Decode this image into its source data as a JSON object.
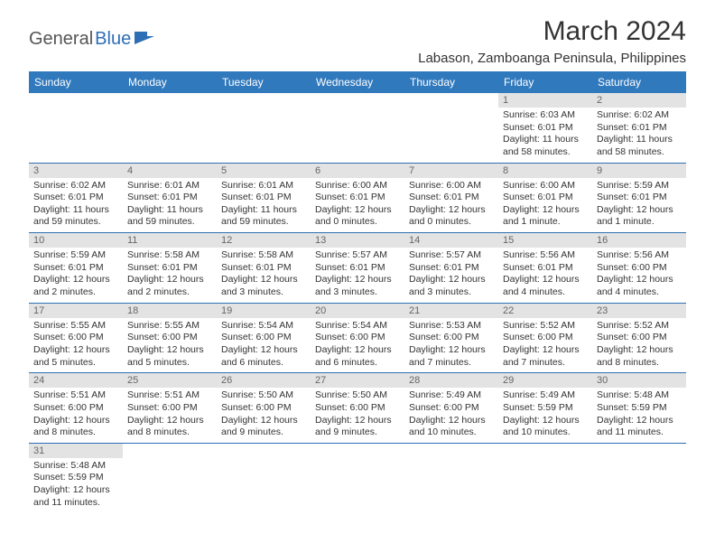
{
  "logo": {
    "general": "General",
    "blue": "Blue"
  },
  "title": "March 2024",
  "location": "Labason, Zamboanga Peninsula, Philippines",
  "colors": {
    "header_bg": "#3179bd",
    "header_text": "#ffffff",
    "daynum_bg": "#e3e3e3",
    "daynum_text": "#666666",
    "border": "#2d6fb5",
    "logo_blue": "#2d6fb5"
  },
  "weekdays": [
    "Sunday",
    "Monday",
    "Tuesday",
    "Wednesday",
    "Thursday",
    "Friday",
    "Saturday"
  ],
  "weeks": [
    [
      null,
      null,
      null,
      null,
      null,
      {
        "n": "1",
        "sr": "Sunrise: 6:03 AM",
        "ss": "Sunset: 6:01 PM",
        "dl": "Daylight: 11 hours and 58 minutes."
      },
      {
        "n": "2",
        "sr": "Sunrise: 6:02 AM",
        "ss": "Sunset: 6:01 PM",
        "dl": "Daylight: 11 hours and 58 minutes."
      }
    ],
    [
      {
        "n": "3",
        "sr": "Sunrise: 6:02 AM",
        "ss": "Sunset: 6:01 PM",
        "dl": "Daylight: 11 hours and 59 minutes."
      },
      {
        "n": "4",
        "sr": "Sunrise: 6:01 AM",
        "ss": "Sunset: 6:01 PM",
        "dl": "Daylight: 11 hours and 59 minutes."
      },
      {
        "n": "5",
        "sr": "Sunrise: 6:01 AM",
        "ss": "Sunset: 6:01 PM",
        "dl": "Daylight: 11 hours and 59 minutes."
      },
      {
        "n": "6",
        "sr": "Sunrise: 6:00 AM",
        "ss": "Sunset: 6:01 PM",
        "dl": "Daylight: 12 hours and 0 minutes."
      },
      {
        "n": "7",
        "sr": "Sunrise: 6:00 AM",
        "ss": "Sunset: 6:01 PM",
        "dl": "Daylight: 12 hours and 0 minutes."
      },
      {
        "n": "8",
        "sr": "Sunrise: 6:00 AM",
        "ss": "Sunset: 6:01 PM",
        "dl": "Daylight: 12 hours and 1 minute."
      },
      {
        "n": "9",
        "sr": "Sunrise: 5:59 AM",
        "ss": "Sunset: 6:01 PM",
        "dl": "Daylight: 12 hours and 1 minute."
      }
    ],
    [
      {
        "n": "10",
        "sr": "Sunrise: 5:59 AM",
        "ss": "Sunset: 6:01 PM",
        "dl": "Daylight: 12 hours and 2 minutes."
      },
      {
        "n": "11",
        "sr": "Sunrise: 5:58 AM",
        "ss": "Sunset: 6:01 PM",
        "dl": "Daylight: 12 hours and 2 minutes."
      },
      {
        "n": "12",
        "sr": "Sunrise: 5:58 AM",
        "ss": "Sunset: 6:01 PM",
        "dl": "Daylight: 12 hours and 3 minutes."
      },
      {
        "n": "13",
        "sr": "Sunrise: 5:57 AM",
        "ss": "Sunset: 6:01 PM",
        "dl": "Daylight: 12 hours and 3 minutes."
      },
      {
        "n": "14",
        "sr": "Sunrise: 5:57 AM",
        "ss": "Sunset: 6:01 PM",
        "dl": "Daylight: 12 hours and 3 minutes."
      },
      {
        "n": "15",
        "sr": "Sunrise: 5:56 AM",
        "ss": "Sunset: 6:01 PM",
        "dl": "Daylight: 12 hours and 4 minutes."
      },
      {
        "n": "16",
        "sr": "Sunrise: 5:56 AM",
        "ss": "Sunset: 6:00 PM",
        "dl": "Daylight: 12 hours and 4 minutes."
      }
    ],
    [
      {
        "n": "17",
        "sr": "Sunrise: 5:55 AM",
        "ss": "Sunset: 6:00 PM",
        "dl": "Daylight: 12 hours and 5 minutes."
      },
      {
        "n": "18",
        "sr": "Sunrise: 5:55 AM",
        "ss": "Sunset: 6:00 PM",
        "dl": "Daylight: 12 hours and 5 minutes."
      },
      {
        "n": "19",
        "sr": "Sunrise: 5:54 AM",
        "ss": "Sunset: 6:00 PM",
        "dl": "Daylight: 12 hours and 6 minutes."
      },
      {
        "n": "20",
        "sr": "Sunrise: 5:54 AM",
        "ss": "Sunset: 6:00 PM",
        "dl": "Daylight: 12 hours and 6 minutes."
      },
      {
        "n": "21",
        "sr": "Sunrise: 5:53 AM",
        "ss": "Sunset: 6:00 PM",
        "dl": "Daylight: 12 hours and 7 minutes."
      },
      {
        "n": "22",
        "sr": "Sunrise: 5:52 AM",
        "ss": "Sunset: 6:00 PM",
        "dl": "Daylight: 12 hours and 7 minutes."
      },
      {
        "n": "23",
        "sr": "Sunrise: 5:52 AM",
        "ss": "Sunset: 6:00 PM",
        "dl": "Daylight: 12 hours and 8 minutes."
      }
    ],
    [
      {
        "n": "24",
        "sr": "Sunrise: 5:51 AM",
        "ss": "Sunset: 6:00 PM",
        "dl": "Daylight: 12 hours and 8 minutes."
      },
      {
        "n": "25",
        "sr": "Sunrise: 5:51 AM",
        "ss": "Sunset: 6:00 PM",
        "dl": "Daylight: 12 hours and 8 minutes."
      },
      {
        "n": "26",
        "sr": "Sunrise: 5:50 AM",
        "ss": "Sunset: 6:00 PM",
        "dl": "Daylight: 12 hours and 9 minutes."
      },
      {
        "n": "27",
        "sr": "Sunrise: 5:50 AM",
        "ss": "Sunset: 6:00 PM",
        "dl": "Daylight: 12 hours and 9 minutes."
      },
      {
        "n": "28",
        "sr": "Sunrise: 5:49 AM",
        "ss": "Sunset: 6:00 PM",
        "dl": "Daylight: 12 hours and 10 minutes."
      },
      {
        "n": "29",
        "sr": "Sunrise: 5:49 AM",
        "ss": "Sunset: 5:59 PM",
        "dl": "Daylight: 12 hours and 10 minutes."
      },
      {
        "n": "30",
        "sr": "Sunrise: 5:48 AM",
        "ss": "Sunset: 5:59 PM",
        "dl": "Daylight: 12 hours and 11 minutes."
      }
    ],
    [
      {
        "n": "31",
        "sr": "Sunrise: 5:48 AM",
        "ss": "Sunset: 5:59 PM",
        "dl": "Daylight: 12 hours and 11 minutes."
      },
      null,
      null,
      null,
      null,
      null,
      null
    ]
  ]
}
